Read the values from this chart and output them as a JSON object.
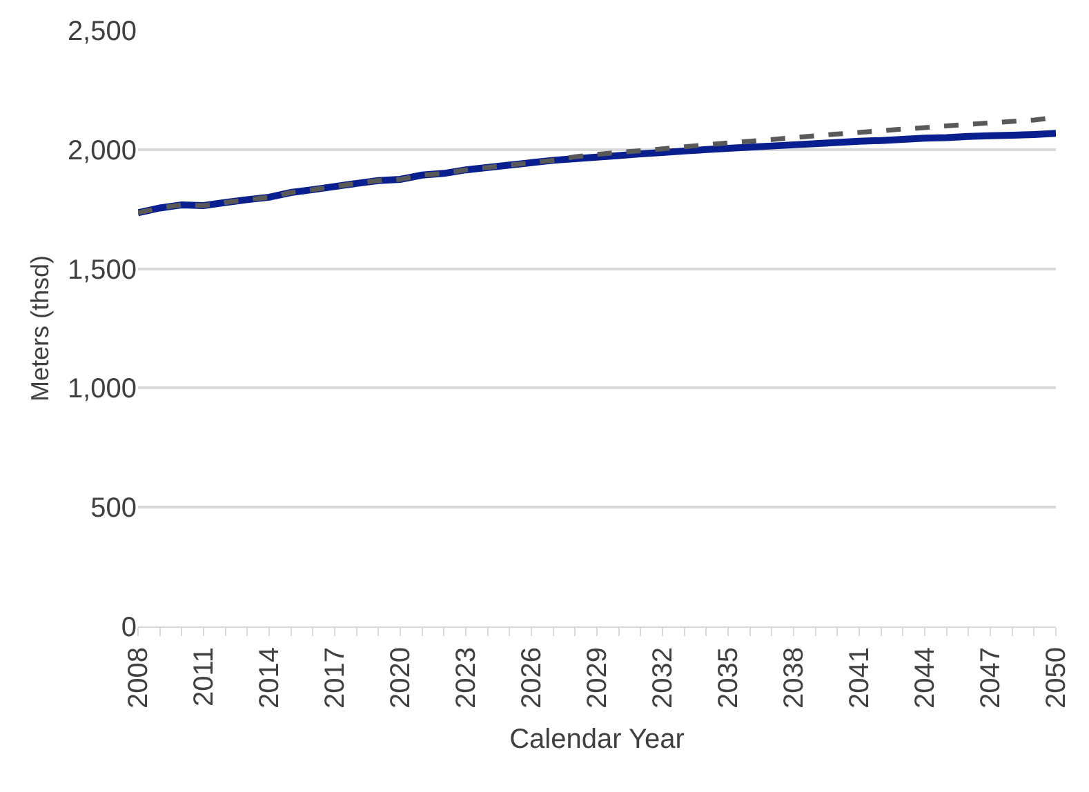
{
  "chart_data": {
    "type": "line",
    "xlabel": "Calendar Year",
    "ylabel": "Meters (thsd)",
    "x": [
      2008,
      2009,
      2010,
      2011,
      2012,
      2013,
      2014,
      2015,
      2016,
      2017,
      2018,
      2019,
      2020,
      2021,
      2022,
      2023,
      2024,
      2025,
      2026,
      2027,
      2028,
      2029,
      2030,
      2031,
      2032,
      2033,
      2034,
      2035,
      2036,
      2037,
      2038,
      2039,
      2040,
      2041,
      2042,
      2043,
      2044,
      2045,
      2046,
      2047,
      2048,
      2049,
      2050
    ],
    "series": [
      {
        "color": "#0a1f8f",
        "line_style": "solid",
        "values": [
          1735,
          1755,
          1768,
          1765,
          1778,
          1790,
          1800,
          1820,
          1832,
          1845,
          1858,
          1870,
          1875,
          1893,
          1900,
          1915,
          1925,
          1935,
          1945,
          1955,
          1962,
          1968,
          1975,
          1982,
          1988,
          1994,
          2000,
          2005,
          2010,
          2015,
          2020,
          2025,
          2030,
          2035,
          2038,
          2043,
          2048,
          2050,
          2055,
          2058,
          2060,
          2063,
          2068
        ]
      },
      {
        "color": "#595959",
        "line_style": "dashed",
        "values": [
          1735,
          1755,
          1768,
          1765,
          1778,
          1790,
          1800,
          1820,
          1832,
          1845,
          1858,
          1870,
          1875,
          1893,
          1900,
          1915,
          1925,
          1935,
          1945,
          1955,
          1970,
          1980,
          1988,
          1995,
          2003,
          2012,
          2020,
          2028,
          2035,
          2042,
          2050,
          2058,
          2065,
          2072,
          2079,
          2086,
          2092,
          2099,
          2106,
          2112,
          2118,
          2124,
          2135
        ]
      }
    ],
    "xlim": [
      2008,
      2050
    ],
    "xticks": [
      2008,
      {
        "value": 2009,
        "label": null
      },
      {
        "value": 2010,
        "label": null
      },
      2011,
      {
        "value": 2012,
        "label": null
      },
      {
        "value": 2013,
        "label": null
      },
      2014,
      {
        "value": 2015,
        "label": null
      },
      {
        "value": 2016,
        "label": null
      },
      2017,
      {
        "value": 2018,
        "label": null
      },
      {
        "value": 2019,
        "label": null
      },
      2020,
      {
        "value": 2021,
        "label": null
      },
      {
        "value": 2022,
        "label": null
      },
      2023,
      {
        "value": 2024,
        "label": null
      },
      {
        "value": 2025,
        "label": null
      },
      2026,
      {
        "value": 2027,
        "label": null
      },
      {
        "value": 2028,
        "label": null
      },
      2029,
      {
        "value": 2030,
        "label": null
      },
      {
        "value": 2031,
        "label": null
      },
      2032,
      {
        "value": 2033,
        "label": null
      },
      {
        "value": 2034,
        "label": null
      },
      2035,
      {
        "value": 2036,
        "label": null
      },
      {
        "value": 2037,
        "label": null
      },
      2038,
      {
        "value": 2039,
        "label": null
      },
      {
        "value": 2040,
        "label": null
      },
      2041,
      {
        "value": 2042,
        "label": null
      },
      {
        "value": 2043,
        "label": null
      },
      2044,
      {
        "value": 2045,
        "label": null
      },
      {
        "value": 2046,
        "label": null
      },
      2047,
      {
        "value": 2048,
        "label": null
      },
      {
        "value": 2049,
        "label": null
      },
      2050
    ],
    "ylim": [
      0,
      2500
    ],
    "yticks": [
      {
        "value": 0,
        "label": "0"
      },
      {
        "value": 500,
        "label": "500"
      },
      {
        "value": 1000,
        "label": "1,000"
      },
      {
        "value": 1500,
        "label": "1,500"
      },
      {
        "value": 2000,
        "label": "2,000"
      },
      {
        "value": 2500,
        "label": "2,500"
      }
    ],
    "grid": "y",
    "marker": "none"
  }
}
